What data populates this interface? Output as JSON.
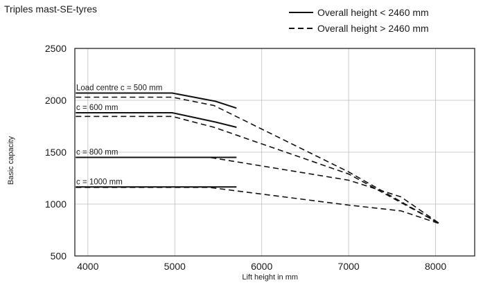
{
  "chart_data": {
    "type": "line",
    "title": "Triples mast-SE-tyres",
    "xlabel": "Lift height in mm",
    "ylabel": "Basic capacity",
    "xlim": [
      3850,
      8450
    ],
    "ylim": [
      500,
      2500
    ],
    "xticks": [
      4000,
      5000,
      6000,
      7000,
      8000
    ],
    "yticks": [
      500,
      1000,
      1500,
      2000,
      2500
    ],
    "grid": "vertical and horizontal lines on tick marks",
    "legend": [
      {
        "label": "Overall height < 2460 mm",
        "style": "solid"
      },
      {
        "label": "Overall height > 2460 mm",
        "style": "dashed"
      }
    ],
    "legend_position": "top-right",
    "series": [
      {
        "style": "solid",
        "group": "c500",
        "x": [
          3860,
          4970,
          5470,
          5710
        ],
        "y": [
          2070,
          2070,
          1990,
          1925
        ]
      },
      {
        "style": "dashed",
        "group": "c500",
        "x": [
          3860,
          4970,
          5450,
          7000,
          8050
        ],
        "y": [
          2030,
          2030,
          1950,
          1310,
          810
        ]
      },
      {
        "style": "solid",
        "group": "c600",
        "x": [
          3860,
          4970,
          5470,
          5710
        ],
        "y": [
          1880,
          1880,
          1790,
          1740
        ]
      },
      {
        "style": "dashed",
        "group": "c600",
        "x": [
          3860,
          4970,
          5450,
          7000,
          8050
        ],
        "y": [
          1845,
          1845,
          1740,
          1290,
          810
        ]
      },
      {
        "style": "solid",
        "group": "c800",
        "x": [
          3860,
          5710
        ],
        "y": [
          1450,
          1450
        ]
      },
      {
        "style": "dashed",
        "group": "c800",
        "x": [
          3860,
          5400,
          7000,
          7600,
          8050
        ],
        "y": [
          1450,
          1450,
          1230,
          1070,
          810
        ]
      },
      {
        "style": "solid",
        "group": "c1000",
        "x": [
          3860,
          5710
        ],
        "y": [
          1165,
          1165
        ]
      },
      {
        "style": "dashed",
        "group": "c1000",
        "x": [
          3860,
          5400,
          7000,
          7600,
          8050
        ],
        "y": [
          1160,
          1160,
          990,
          935,
          810
        ]
      }
    ],
    "annotations": [
      {
        "text": "Load centre c = 500 mm",
        "group": "c500"
      },
      {
        "text": "c = 600 mm",
        "group": "c600"
      },
      {
        "text": "c = 800 mm",
        "group": "c800"
      },
      {
        "text": "c = 1000 mm",
        "group": "c1000"
      }
    ]
  }
}
